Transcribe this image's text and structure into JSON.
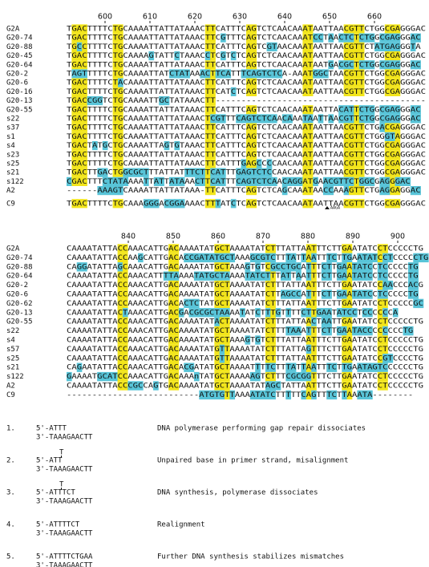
{
  "alignment_1": {
    "ruler": [
      600,
      610,
      620,
      630,
      640,
      650,
      660
    ],
    "rows": [
      {
        "name": "G2A",
        "seq": "TGACTTTTCTGCAAAATTATTATAAACTTCATTTCAGTCTCAACAAATAATTAACGTTCTGGCGAGGGAC"
      },
      {
        "name": "G20-74",
        "seq": "TGACTTTTCTGCAAAATTATTATAAACTTCGTTTCAGTCTCAACAAATCCTAACTCTCTGGCGAGGGAC"
      },
      {
        "name": "G20-88",
        "seq": "TGCCTTTTCTGCAAAATTATTATAAACTTCATTTCAGTCGTAACAAATAATTAACGTTCTATGAGGGTA"
      },
      {
        "name": "G20-45",
        "seq": "TGACTTTTCTGCAAAAGTATTCTAAACCTCGTCTCAGTCTCAACAAATAATTAACGTTCTGGCGAGGGAC"
      },
      {
        "name": "G20-64",
        "seq": "TGACTTTTCTGCAAAATTATTATAAACTTCATTTCAGTCTCAACAAATAATGACGCTCTGGCGAGGGAC"
      },
      {
        "name": "G20-2",
        "seq": "TAGTTTTTCTGCAAAATTATCTATAAACTTCATTTCAGTCTCA-AAATGGCTAACGTTCTGGCGAGGGAC"
      },
      {
        "name": "G20-6",
        "seq": "TGACTTTTCTACAAAATTATTATAAACTTCATTTCAGTCTCAACAAATAATTAACGTTCTGGCGAGGGAC"
      },
      {
        "name": "G20-16",
        "seq": "TGACTTTTCTGCAAAATTATTATAAACTTCATCTCAGTCTCAACAAATAATTAACGTTCTGGCGAGGGAC"
      },
      {
        "name": "G20-13",
        "seq": "TGACCGGTCTGCAAAATTGCTATAAACTT-----------------------------------------"
      },
      {
        "name": "G20-55",
        "seq": "TGACTTTTCTGCAAAATTATTATAAACTTCATTTCAGTCTCAACAAATAATTACATTCTGGCGAGGGAC"
      },
      {
        "name": "s22",
        "seq": "TGACTTTTCTGCAAAATTATTATAAACTCGTTTCAGTCTCAACAAATAATTAACGTTCTGGCGAGGGAC"
      },
      {
        "name": "s37",
        "seq": "TGACTTTTCTGCAAAATTATTATAAACTTCATTTCAGTCTCAACAAATAATTAACGTTCTGACGAGGGAC"
      },
      {
        "name": "s1",
        "seq": "TGACTTTTCTGCAAAATTATTATAAACTTCATTTCAGTCTCAACAAATAATTAACGTTCTGGGTAGGGAC"
      },
      {
        "name": "s4",
        "seq": "TGACTATGCTGCAAAATTAGTGTAAACTTCATTTCAGTCTCAACAAATAATTAACGTTCTGGCGAGGGAC"
      },
      {
        "name": "s23",
        "seq": "TGACTTTTCTGCAAAATTATTATAAACTTCATTTCAGTCTCAACAAATAATTAACGTTCTGGCGAGGGAC"
      },
      {
        "name": "s25",
        "seq": "TGACTTTTCTGCAAAATTATTATAAACTTCATTTGAGCCCCAACAAATAATTAACGTTCTGGCGAGGGAC"
      },
      {
        "name": "s21",
        "seq": "TGACTTGACTGGCGCTTTATTATTTCTTCATTTGAGTCTCCAACAAATAATTAACGTTCTGGCGAGGGAC"
      },
      {
        "name": "s122",
        "seq": "CGACTTTCTATAAAATTATTATAAACTTCATTTCAGTCTCAACAGGATGAACGTTCTGGCGAGGGAC"
      },
      {
        "name": "A2",
        "seq": "------AAAGTCAAAATTATTATAAA-TTCATTTCAGTCTCAGCAAATAACCAAAGTTCTGAGGAGGAC"
      },
      {
        "name": "C9",
        "seq": "TGACTTTTCTGCAAAGGGACGGAAAACTTTATCTCAGTCTCAACAAATAATTAACGTTCTGGCGAGGGAC"
      }
    ],
    "annotation": "AAGA"
  },
  "alignment_2": {
    "ruler": [
      840,
      850,
      860,
      870,
      880,
      890,
      900
    ],
    "rows": [
      {
        "name": "G2A",
        "seq": "CAAAATATTACCAAACATTGACAAAATATGCTAAAATATCTTTATTAATTTCTTGAATATCCTCCCCCTG"
      },
      {
        "name": "G20-74",
        "seq": "CAAAATATTACCAAGCATTGACACCGATATGCTAAAGCGTCTTTATTAATTTCTTGAATATCCTCCCCCTG"
      },
      {
        "name": "G20-88",
        "seq": "CAGGATATTAGCAAACATTGACAAAATATGCTAAAGTGTCGCCTGCATTTCTTGAATATCCTCCCCCTG"
      },
      {
        "name": "G20-64",
        "seq": "CAAAATATTACCAAACATTTTAAAATATGCTAAAATATCTTTATTAATTTCTTGAATATCCTCCCCCTG"
      },
      {
        "name": "G20-2",
        "seq": "CAAAATATTACCAAACATTGACAAAATATGCTAAAATATCTTTATTAATTTCTTGAATATCCAACCCACG"
      },
      {
        "name": "G20-6",
        "seq": "CAAAATATTACCAAACATTGACAAAATATGCTAAAATATCTTAGCCATTTCTTGAATATCCTCCCCCTG"
      },
      {
        "name": "G20-62",
        "seq": "CAAAATATTACCAAACATTGACACTCTATGCTAAAATATCTTTATTAATTTCTTGAATATCCTCCCCCGC"
      },
      {
        "name": "G20-13",
        "seq": "CAAAATATTACTAAACATTGACGACGCGCTAAAATATCTTTGTTTTCTTGAATATCCTCCCCCCA"
      },
      {
        "name": "G20-55",
        "seq": "CAAAATATTACCAAACATTGACAAAATATACTAAAATATCTTTATTAACTAATTGAATATCCTCCCCCTG"
      },
      {
        "name": "s22",
        "seq": "CAAAATATTACCAAACATTGACAAAATATGCTAAAATATCTTTTAAATTTCTTGAATACCCCCCCCTG"
      },
      {
        "name": "s4",
        "seq": "CAAAATATTACCAAACATTGACAAAATATGCTAAAGTGTCTTTATTAATTTCTTGAATATCCTCCCCCTG"
      },
      {
        "name": "s57",
        "seq": "CAAAATATTACCAAACATTGACAAAATATGTTAAAATATCTTTATTAGTTTCTTGAATATCCTCCCCCTG"
      },
      {
        "name": "s25",
        "seq": "CAAAATATTACCAAACATTGACAAAATATGTTAAAATATCTTTATTAATTTCTTGAATATCCGTCCCCTG"
      },
      {
        "name": "s21",
        "seq": "CAGAATATTACCAAACATTGACACGATATGCTAAAATTTTCTTTATTAATTTCTTGAATAGTCCCCCCTG"
      },
      {
        "name": "s122",
        "seq": "GAAAATGCATCCAAACATTGACAAAnTATGCTAAAAAGTCTTTCGCGGTTTCTTGAATATCCTCCCCCTG"
      },
      {
        "name": "A2",
        "seq": "CAAAATATTACCCGCCAGTGACAAAATATGCTAAAATATAGCTATTAATTTCTTGAATATCCTCCCCCTG"
      },
      {
        "name": "C9",
        "seq": "--------------------------ATGTGTTAAAATATCTTTTTCAGTTTCTTAAATA--------"
      }
    ]
  },
  "steps": [
    {
      "number": "1.",
      "strand_5": "5'-ATTT",
      "strand_3": "3'-TAAAGAACTT",
      "text": "DNA polymerase performing gap repair dissociates"
    },
    {
      "number": "2.",
      "insert": "T",
      "strand_5": "5'-ATT",
      "strand_3": "3'-TAAAGAACTT",
      "text": "Unpaired base in primer strand, misalignment"
    },
    {
      "number": "3.",
      "insert": "T",
      "strand_5": "5'-ATTTCT",
      "strand_3": "3'-TAAAGAACTT",
      "text": "DNA synthesis, polymerase dissociates"
    },
    {
      "number": "4.",
      "strand_5": "5'-ATTTTCT",
      "strand_3": "3'-TAAAGAACTT",
      "text": "Realignment"
    },
    {
      "number": "5.",
      "strand_5": "5'-ATTTTCTGAA",
      "strand_3": "3'-TAAAGAACTT",
      "text": "Further DNA synthesis stabilizes mismatches"
    }
  ]
}
